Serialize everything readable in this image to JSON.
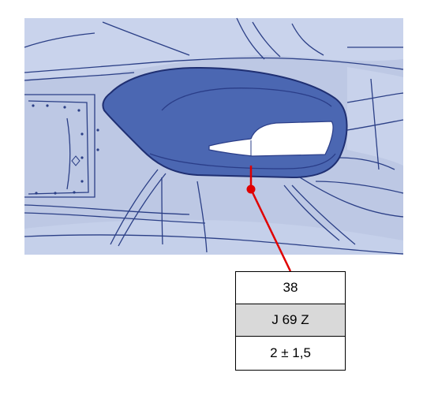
{
  "callout": {
    "point_number": "38",
    "code": "J 69 Z",
    "tolerance": "2 ± 1,5"
  },
  "colors": {
    "panel": "#b9c5e2",
    "panel_light": "#cfd8ee",
    "highlight_part": "#4a68b3",
    "lines": "#2b3f86",
    "leader": "#e00000"
  }
}
